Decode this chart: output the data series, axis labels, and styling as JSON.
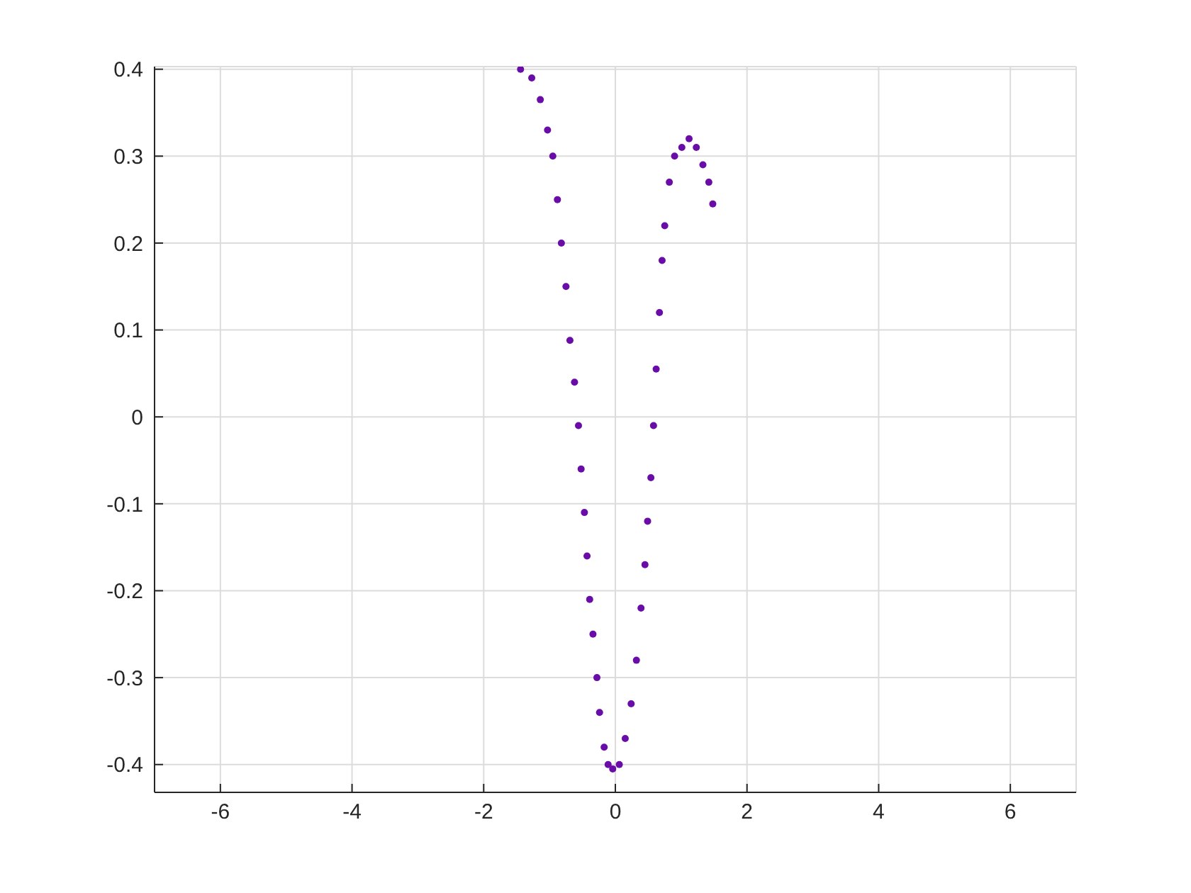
{
  "chart_data": {
    "type": "scatter",
    "x": [
      -1.44,
      -1.27,
      -1.14,
      -1.03,
      -0.95,
      -0.88,
      -0.82,
      -0.75,
      -0.69,
      -0.62,
      -0.56,
      -0.52,
      -0.47,
      -0.43,
      -0.39,
      -0.34,
      -0.28,
      -0.24,
      -0.17,
      -0.11,
      -0.04,
      0.06,
      0.15,
      0.24,
      0.32,
      0.39,
      0.45,
      0.49,
      0.54,
      0.58,
      0.62,
      0.67,
      0.71,
      0.75,
      0.82,
      0.9,
      1.01,
      1.12,
      1.23,
      1.33,
      1.42,
      1.48
    ],
    "series": [
      {
        "color": "#6a0da8",
        "values": [
          0.4,
          0.39,
          0.365,
          0.33,
          0.3,
          0.25,
          0.2,
          0.15,
          0.088,
          0.04,
          -0.01,
          -0.06,
          -0.11,
          -0.16,
          -0.21,
          -0.25,
          -0.3,
          -0.34,
          -0.38,
          -0.4,
          -0.405,
          -0.4,
          -0.37,
          -0.33,
          -0.28,
          -0.22,
          -0.17,
          -0.12,
          -0.07,
          -0.01,
          0.055,
          0.12,
          0.18,
          0.22,
          0.27,
          0.3,
          0.31,
          0.32,
          0.31,
          0.29,
          0.27,
          0.245
        ]
      }
    ],
    "xlim": [
      -7,
      7
    ],
    "xticks": [
      -6,
      -4,
      -2,
      0,
      2,
      4,
      6
    ],
    "ylim": [
      -0.432,
      0.403
    ],
    "yticks": [
      -0.4,
      -0.3,
      -0.2,
      -0.1,
      0,
      0.1,
      0.2,
      0.3,
      0.4
    ],
    "grid": true,
    "marker": "circle"
  }
}
